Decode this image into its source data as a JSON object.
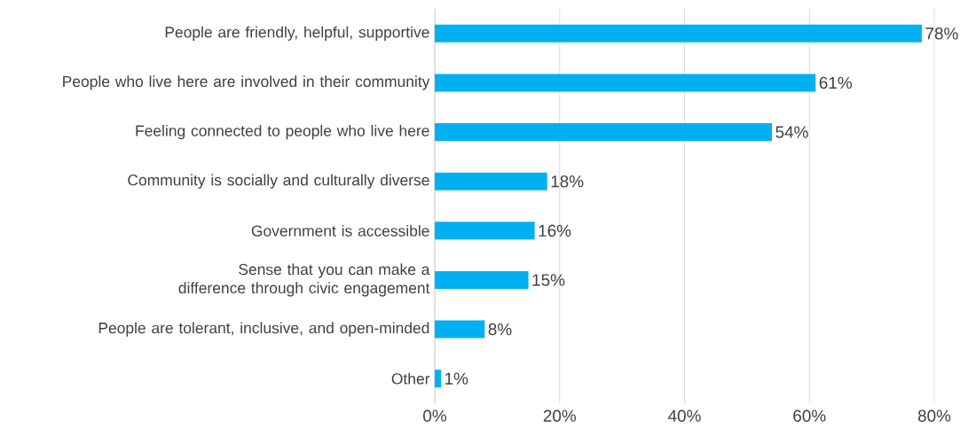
{
  "chart_data": {
    "type": "bar",
    "orientation": "horizontal",
    "categories": [
      "People are friendly, helpful, supportive",
      "People who live here are involved in their community",
      "Feeling connected to people who live here",
      "Community is socially and culturally diverse",
      "Government is accessible",
      "Sense that you can make a difference through civic engagement",
      "People are tolerant, inclusive, and open-minded",
      "Other"
    ],
    "values": [
      78,
      61,
      54,
      18,
      16,
      15,
      8,
      1
    ],
    "value_labels": [
      "78%",
      "61%",
      "54%",
      "18%",
      "16%",
      "15%",
      "8%",
      "1%"
    ],
    "color": "#00b0f0",
    "xlim": [
      0,
      80
    ],
    "xticks": [
      {
        "value": 0,
        "label": "0%"
      },
      {
        "value": 20,
        "label": "20%"
      },
      {
        "value": 40,
        "label": "40%"
      },
      {
        "value": 60,
        "label": "60%"
      },
      {
        "value": 80,
        "label": "80%"
      }
    ],
    "grid": "x"
  }
}
